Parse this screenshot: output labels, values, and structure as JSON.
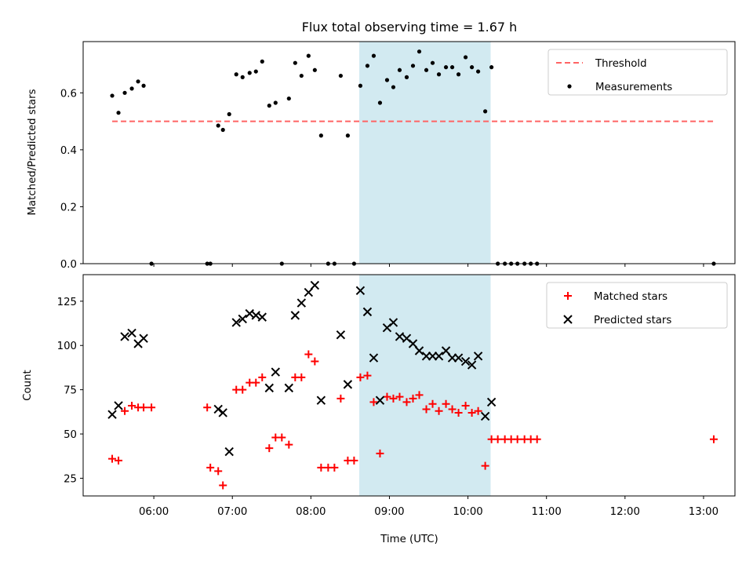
{
  "chart_data": {
    "title": "Flux total observing time = 1.67 h",
    "highlight": {
      "start": 8.616,
      "end": 10.289,
      "color": "#add8e6"
    },
    "colors": {
      "threshold": "#ff6464",
      "measurement": "#000000",
      "matched": "#ff0000",
      "predicted": "#000000"
    },
    "panels": [
      {
        "type": "scatter",
        "ylabel": "Matched/Predicted stars",
        "xlim": [
          5.1,
          13.4
        ],
        "ylim": [
          0,
          0.78
        ],
        "yticks": [
          0,
          0.2,
          0.4,
          0.6
        ],
        "ytick_labels": [
          "0.0",
          "0.2",
          "0.4",
          "0.6"
        ],
        "legend": {
          "position": "upper right",
          "entries": [
            "Threshold",
            "Measurements"
          ]
        },
        "threshold": {
          "name": "Threshold",
          "value": 0.5,
          "x": [
            5.47,
            13.13
          ]
        },
        "series": [
          {
            "name": "Measurements",
            "marker": "dot",
            "x": [
              5.47,
              5.55,
              5.63,
              5.72,
              5.8,
              5.87,
              5.97,
              6.68,
              6.72,
              6.82,
              6.88,
              6.96,
              7.05,
              7.13,
              7.22,
              7.3,
              7.38,
              7.47,
              7.55,
              7.63,
              7.72,
              7.8,
              7.88,
              7.97,
              8.05,
              8.13,
              8.22,
              8.3,
              8.38,
              8.47,
              8.55,
              8.63,
              8.72,
              8.8,
              8.88,
              8.97,
              9.05,
              9.13,
              9.22,
              9.3,
              9.38,
              9.47,
              9.55,
              9.63,
              9.72,
              9.8,
              9.88,
              9.97,
              10.05,
              10.13,
              10.22,
              10.3,
              10.38,
              10.47,
              10.55,
              10.63,
              10.72,
              10.8,
              10.88,
              13.13
            ],
            "y": [
              0.59,
              0.53,
              0.6,
              0.615,
              0.64,
              0.625,
              0,
              0,
              0,
              0.485,
              0.47,
              0.525,
              0.665,
              0.655,
              0.67,
              0.675,
              0.71,
              0.555,
              0.565,
              0,
              0.58,
              0.705,
              0.66,
              0.73,
              0.68,
              0.45,
              0,
              0,
              0.66,
              0.45,
              0,
              0.625,
              0.695,
              0.73,
              0.565,
              0.645,
              0.62,
              0.68,
              0.655,
              0.695,
              0.745,
              0.68,
              0.705,
              0.665,
              0.69,
              0.69,
              0.665,
              0.725,
              0.69,
              0.675,
              0.535,
              0.69,
              0,
              0,
              0,
              0,
              0,
              0,
              0,
              0
            ]
          }
        ]
      },
      {
        "type": "scatter",
        "xlabel": "Time (UTC)",
        "ylabel": "Count",
        "xlim": [
          5.1,
          13.4
        ],
        "ylim": [
          15,
          140
        ],
        "yticks": [
          25,
          50,
          75,
          100,
          125
        ],
        "ytick_labels": [
          "25",
          "50",
          "75",
          "100",
          "125"
        ],
        "xticks": [
          6,
          7,
          8,
          9,
          10,
          11,
          12,
          13
        ],
        "xtick_labels": [
          "06:00",
          "07:00",
          "08:00",
          "09:00",
          "10:00",
          "11:00",
          "12:00",
          "13:00"
        ],
        "legend": {
          "position": "upper right",
          "entries": [
            "Matched stars",
            "Predicted stars"
          ]
        },
        "series": [
          {
            "name": "Matched stars",
            "marker": "plus",
            "x": [
              5.47,
              5.55,
              5.63,
              5.72,
              5.8,
              5.87,
              5.97,
              6.68,
              6.72,
              6.82,
              6.88,
              6.96,
              7.05,
              7.13,
              7.22,
              7.3,
              7.38,
              7.47,
              7.55,
              7.63,
              7.72,
              7.8,
              7.88,
              7.97,
              8.05,
              8.13,
              8.22,
              8.3,
              8.38,
              8.47,
              8.55,
              8.63,
              8.72,
              8.8,
              8.88,
              8.97,
              9.05,
              9.13,
              9.22,
              9.3,
              9.38,
              9.47,
              9.55,
              9.63,
              9.72,
              9.8,
              9.88,
              9.97,
              10.05,
              10.13,
              10.22,
              10.3,
              10.38,
              10.47,
              10.55,
              10.63,
              10.72,
              10.8,
              10.88,
              13.13
            ],
            "y": [
              36,
              35,
              63,
              66,
              65,
              65,
              65,
              65,
              31,
              29,
              21,
              null,
              75,
              75,
              79,
              79,
              82,
              42,
              48,
              48,
              44,
              82,
              82,
              95,
              91,
              31,
              31,
              31,
              70,
              35,
              35,
              82,
              83,
              68,
              39,
              71,
              70,
              71,
              68,
              70,
              72,
              64,
              67,
              63,
              67,
              64,
              62,
              66,
              62,
              63,
              32,
              47,
              47,
              47,
              47,
              47,
              47,
              47,
              47,
              47
            ]
          },
          {
            "name": "Predicted stars",
            "marker": "x",
            "x": [
              5.47,
              5.55,
              5.63,
              5.72,
              5.8,
              5.87,
              5.97,
              6.68,
              6.72,
              6.82,
              6.88,
              6.96,
              7.05,
              7.13,
              7.22,
              7.3,
              7.38,
              7.47,
              7.55,
              7.63,
              7.72,
              7.8,
              7.88,
              7.97,
              8.05,
              8.13,
              8.22,
              8.3,
              8.38,
              8.47,
              8.55,
              8.63,
              8.72,
              8.8,
              8.88,
              8.97,
              9.05,
              9.13,
              9.22,
              9.3,
              9.38,
              9.47,
              9.55,
              9.63,
              9.72,
              9.8,
              9.88,
              9.97,
              10.05,
              10.13,
              10.22,
              10.3,
              10.38,
              10.47,
              10.55,
              10.63,
              10.72,
              10.8,
              10.88,
              13.13
            ],
            "y": [
              61,
              66,
              105,
              107,
              101,
              104,
              null,
              null,
              null,
              64,
              62,
              40,
              113,
              115,
              118,
              117,
              116,
              76,
              85,
              null,
              76,
              117,
              124,
              130,
              134,
              69,
              null,
              null,
              106,
              78,
              null,
              131,
              119,
              93,
              69,
              110,
              113,
              105,
              104,
              101,
              97,
              94,
              94,
              94,
              97,
              93,
              93,
              91,
              89,
              94,
              60,
              68,
              null,
              null,
              null,
              null,
              null,
              null,
              null,
              null
            ]
          }
        ]
      }
    ]
  }
}
